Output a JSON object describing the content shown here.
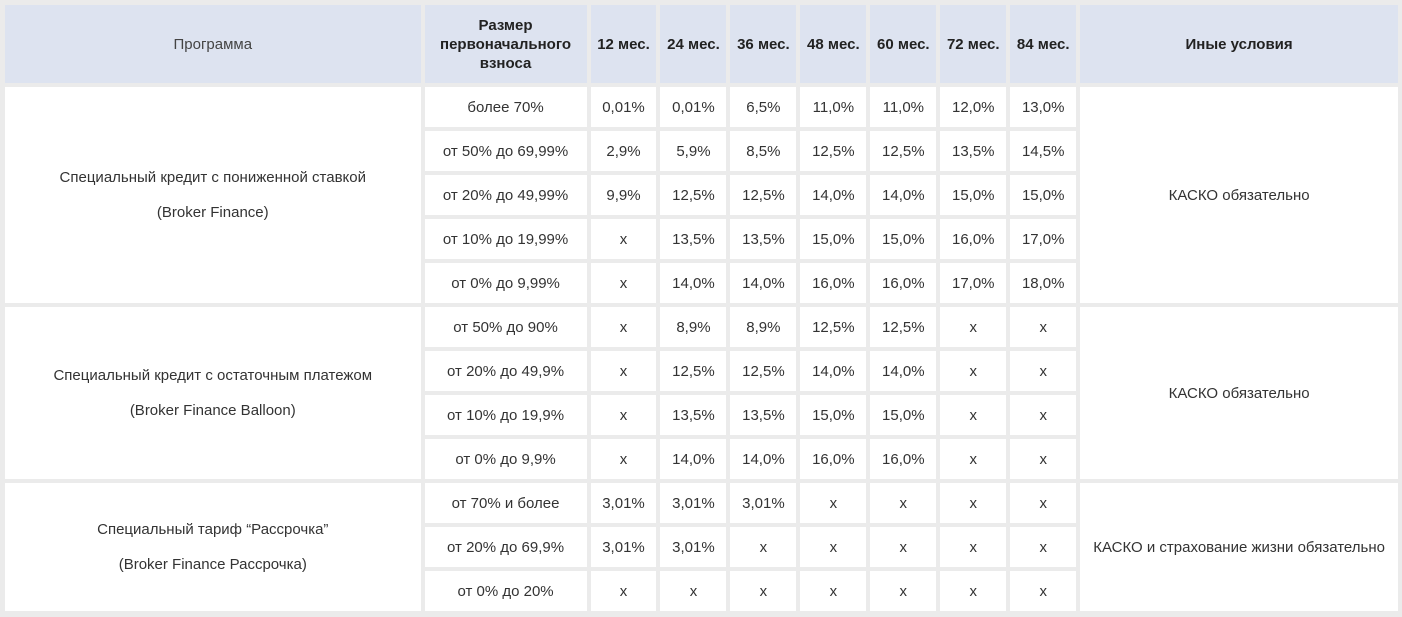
{
  "header": {
    "program": "Программа",
    "deposit": "Размер первоначального взноса",
    "terms": [
      "12 мес.",
      "24 мес.",
      "36 мес.",
      "48 мес.",
      "60 мес.",
      "72 мес.",
      "84 мес."
    ],
    "conditions": "Иные условия"
  },
  "groups": [
    {
      "name": "Специальный кредит с пониженной ставкой",
      "code": "(Broker Finance)",
      "conditions": "КАСКО обязательно",
      "rows": [
        {
          "deposit": "более 70%",
          "rates": [
            "0,01%",
            "0,01%",
            "6,5%",
            "11,0%",
            "11,0%",
            "12,0%",
            "13,0%"
          ]
        },
        {
          "deposit": "от 50% до 69,99%",
          "rates": [
            "2,9%",
            "5,9%",
            "8,5%",
            "12,5%",
            "12,5%",
            "13,5%",
            "14,5%"
          ]
        },
        {
          "deposit": "от 20% до 49,99%",
          "rates": [
            "9,9%",
            "12,5%",
            "12,5%",
            "14,0%",
            "14,0%",
            "15,0%",
            "15,0%"
          ]
        },
        {
          "deposit": "от 10% до 19,99%",
          "rates": [
            "х",
            "13,5%",
            "13,5%",
            "15,0%",
            "15,0%",
            "16,0%",
            "17,0%"
          ]
        },
        {
          "deposit": "от 0% до 9,99%",
          "rates": [
            "х",
            "14,0%",
            "14,0%",
            "16,0%",
            "16,0%",
            "17,0%",
            "18,0%"
          ]
        }
      ]
    },
    {
      "name": "Специальный кредит с остаточным платежом",
      "code": "(Broker Finance Balloon)",
      "conditions": "КАСКО обязательно",
      "rows": [
        {
          "deposit": "от 50% до 90%",
          "rates": [
            "х",
            "8,9%",
            "8,9%",
            "12,5%",
            "12,5%",
            "х",
            "х"
          ]
        },
        {
          "deposit": "от 20% до 49,9%",
          "rates": [
            "х",
            "12,5%",
            "12,5%",
            "14,0%",
            "14,0%",
            "х",
            "х"
          ]
        },
        {
          "deposit": "от 10% до 19,9%",
          "rates": [
            "х",
            "13,5%",
            "13,5%",
            "15,0%",
            "15,0%",
            "х",
            "х"
          ]
        },
        {
          "deposit": "от 0% до 9,9%",
          "rates": [
            "х",
            "14,0%",
            "14,0%",
            "16,0%",
            "16,0%",
            "х",
            "х"
          ]
        }
      ]
    },
    {
      "name": "Специальный тариф “Рассрочка”",
      "code": "(Broker Finance Рассрочка)",
      "conditions": "КАСКО и страхование жизни обязательно",
      "rows": [
        {
          "deposit": "от 70% и более",
          "rates": [
            "3,01%",
            "3,01%",
            "3,01%",
            "х",
            "х",
            "х",
            "х"
          ]
        },
        {
          "deposit": "от 20% до 69,9%",
          "rates": [
            "3,01%",
            "3,01%",
            "х",
            "х",
            "х",
            "х",
            "х"
          ]
        },
        {
          "deposit": "от 0% до 20%",
          "rates": [
            "х",
            "х",
            "х",
            "х",
            "х",
            "х",
            "х"
          ]
        }
      ]
    }
  ]
}
